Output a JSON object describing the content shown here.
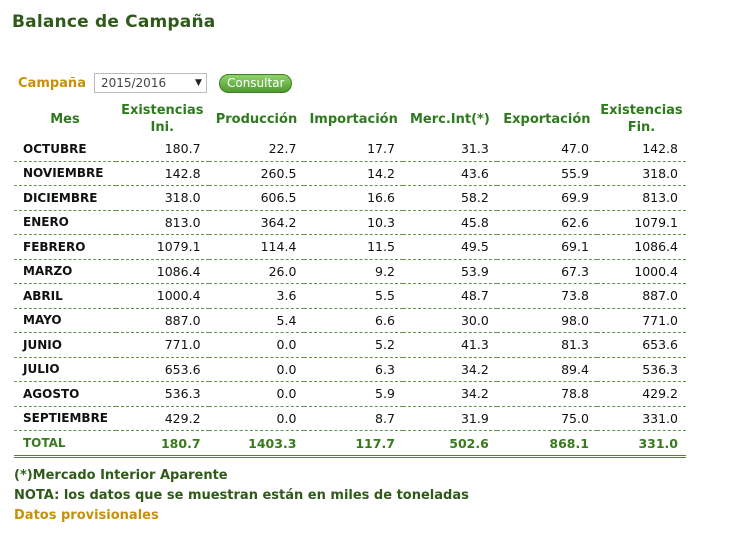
{
  "page": {
    "title": "Balance de Campaña"
  },
  "filter": {
    "label": "Campaña",
    "selected": "2015/2016",
    "button_label": "Consultar"
  },
  "table": {
    "headers": [
      "Mes",
      "Existencias Ini.",
      "Producción",
      "Importación",
      "Merc.Int(*)",
      "Exportación",
      "Existencias Fin."
    ],
    "rows": [
      [
        "OCTUBRE",
        "180.7",
        "22.7",
        "17.7",
        "31.3",
        "47.0",
        "142.8"
      ],
      [
        "NOVIEMBRE",
        "142.8",
        "260.5",
        "14.2",
        "43.6",
        "55.9",
        "318.0"
      ],
      [
        "DICIEMBRE",
        "318.0",
        "606.5",
        "16.6",
        "58.2",
        "69.9",
        "813.0"
      ],
      [
        "ENERO",
        "813.0",
        "364.2",
        "10.3",
        "45.8",
        "62.6",
        "1079.1"
      ],
      [
        "FEBRERO",
        "1079.1",
        "114.4",
        "11.5",
        "49.5",
        "69.1",
        "1086.4"
      ],
      [
        "MARZO",
        "1086.4",
        "26.0",
        "9.2",
        "53.9",
        "67.3",
        "1000.4"
      ],
      [
        "ABRIL",
        "1000.4",
        "3.6",
        "5.5",
        "48.7",
        "73.8",
        "887.0"
      ],
      [
        "MAYO",
        "887.0",
        "5.4",
        "6.6",
        "30.0",
        "98.0",
        "771.0"
      ],
      [
        "JUNIO",
        "771.0",
        "0.0",
        "5.2",
        "41.3",
        "81.3",
        "653.6"
      ],
      [
        "JULIO",
        "653.6",
        "0.0",
        "6.3",
        "34.2",
        "89.4",
        "536.3"
      ],
      [
        "AGOSTO",
        "536.3",
        "0.0",
        "5.9",
        "34.2",
        "78.8",
        "429.2"
      ],
      [
        "SEPTIEMBRE",
        "429.2",
        "0.0",
        "8.7",
        "31.9",
        "75.0",
        "331.0"
      ]
    ],
    "total": [
      "TOTAL",
      "180.7",
      "1403.3",
      "117.7",
      "502.6",
      "868.1",
      "331.0"
    ]
  },
  "notes": {
    "footnote": "(*)Mercado Interior Aparente",
    "nota": "NOTA: los datos que se muestran están en miles de toneladas",
    "provisional": "Datos provisionales"
  }
}
